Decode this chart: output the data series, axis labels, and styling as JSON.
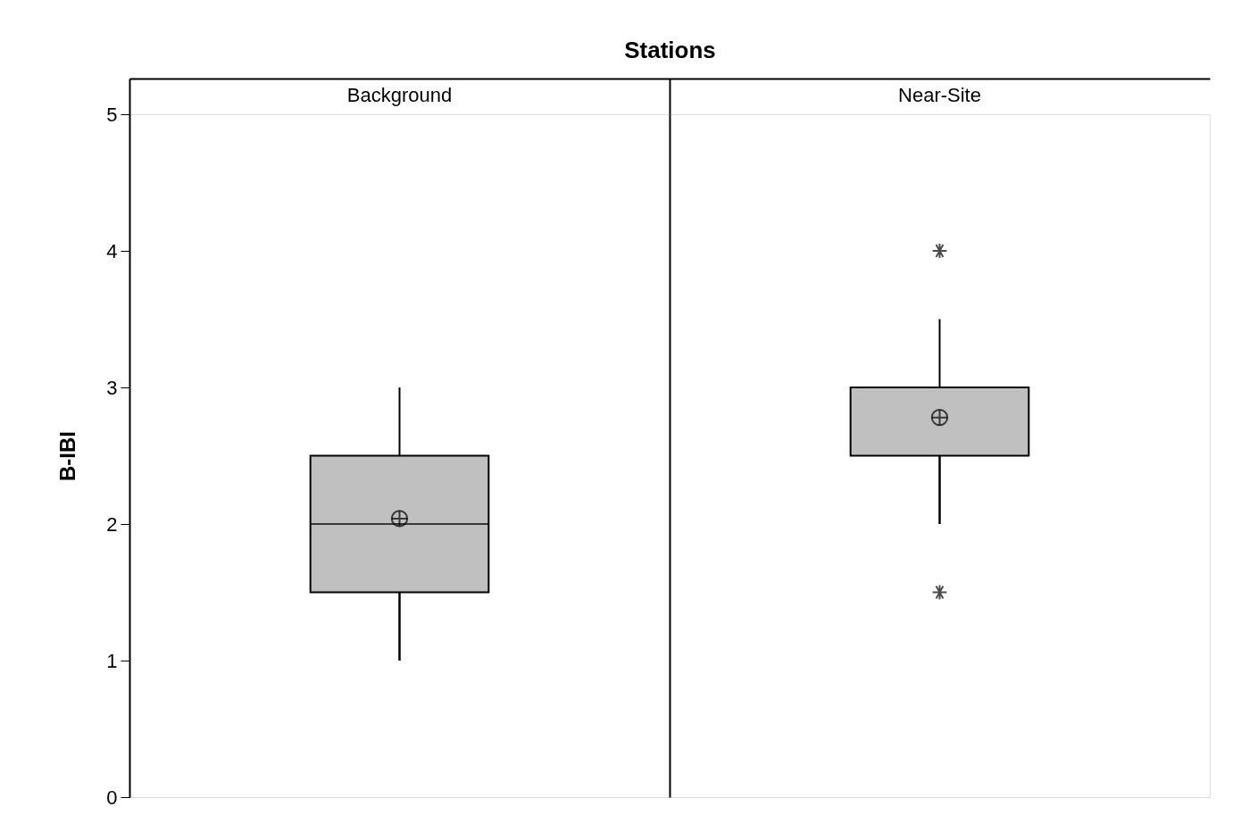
{
  "chart_data": {
    "type": "box",
    "xlabel": "Stations",
    "ylabel": "B-IBI",
    "categories": [
      "Background",
      "Near-Site"
    ],
    "boxes": [
      {
        "low": 1.0,
        "q1": 1.5,
        "median": 2.0,
        "q3": 2.5,
        "high": 3.0,
        "mean": 2.04
      },
      {
        "low": 2.0,
        "q1": 2.5,
        "median": 3.0,
        "q3": 3.0,
        "high": 3.5,
        "mean": 2.78,
        "outliers": [
          4.0,
          1.5
        ]
      }
    ],
    "color": "#c0c0c0",
    "ylim": [
      0,
      5
    ],
    "yticks": [
      0,
      1,
      2,
      3,
      4,
      5
    ],
    "grid": false
  }
}
